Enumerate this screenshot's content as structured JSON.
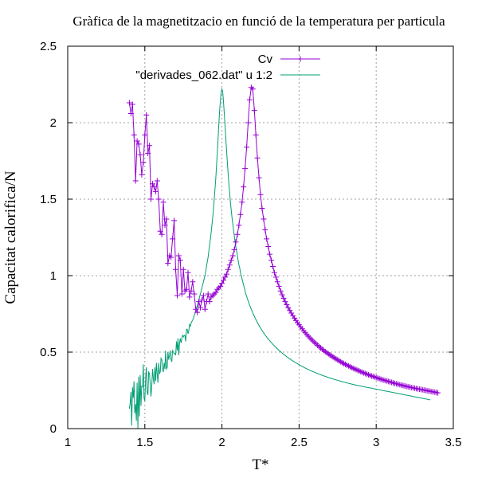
{
  "chart_data": {
    "type": "line",
    "title": "Gràfica de la magnetitzacio en funció de la temperatura per particula",
    "xlabel": "T*",
    "ylabel": "Capacitat calorifica/N",
    "xlim": [
      1,
      3.5
    ],
    "ylim": [
      0,
      2.5
    ],
    "xticks": [
      "1",
      "1.5",
      "2",
      "2.5",
      "3",
      "3.5"
    ],
    "yticks": [
      "0",
      "0.5",
      "1",
      "1.5",
      "2",
      "2.5"
    ],
    "grid": true,
    "legend_position": "top-right",
    "series": [
      {
        "name": "Cv",
        "color": "#9400d3",
        "marker": "plus",
        "x_start": 1.4,
        "x_step": 0.01,
        "values": [
          2.13,
          2.06,
          2.12,
          1.92,
          1.62,
          1.88,
          1.86,
          1.79,
          1.66,
          1.74,
          1.92,
          2.05,
          1.8,
          1.85,
          1.5,
          1.6,
          1.58,
          1.55,
          1.62,
          1.5,
          1.29,
          1.27,
          1.48,
          1.33,
          1.37,
          1.08,
          1.13,
          1.12,
          1.24,
          1.36,
          1.04,
          0.87,
          1.13,
          1.1,
          0.88,
          1.04,
          0.9,
          0.91,
          1.02,
          0.86,
          0.9,
          0.96,
          0.88,
          0.78,
          0.76,
          0.83,
          0.79,
          0.84,
          0.87,
          0.78,
          0.83,
          0.88,
          0.83,
          0.86,
          0.87,
          0.88,
          0.89,
          0.91,
          0.92,
          0.93,
          0.95,
          0.97,
          0.99,
          1.01,
          1.04,
          1.07,
          1.1,
          1.13,
          1.17,
          1.22,
          1.27,
          1.33,
          1.4,
          1.48,
          1.58,
          1.7,
          1.84,
          2.0,
          2.15,
          2.23,
          2.22,
          2.08,
          1.92,
          1.77,
          1.64,
          1.53,
          1.44,
          1.37,
          1.3,
          1.24,
          1.19,
          1.14,
          1.1,
          1.06,
          1.02,
          0.99,
          0.96,
          0.93,
          0.9,
          0.875,
          0.852,
          0.83,
          0.81,
          0.79,
          0.772,
          0.755,
          0.738,
          0.722,
          0.707,
          0.692,
          0.678,
          0.665,
          0.652,
          0.639,
          0.627,
          0.615,
          0.604,
          0.593,
          0.583,
          0.573,
          0.563,
          0.554,
          0.545,
          0.536,
          0.527,
          0.519,
          0.511,
          0.503,
          0.496,
          0.489,
          0.482,
          0.475,
          0.468,
          0.462,
          0.455,
          0.449,
          0.443,
          0.437,
          0.431,
          0.426,
          0.42,
          0.415,
          0.41,
          0.405,
          0.4,
          0.395,
          0.39,
          0.386,
          0.381,
          0.377,
          0.372,
          0.368,
          0.364,
          0.36,
          0.356,
          0.352,
          0.348,
          0.344,
          0.341,
          0.337,
          0.334,
          0.33,
          0.327,
          0.323,
          0.32,
          0.317,
          0.314,
          0.311,
          0.308,
          0.305,
          0.302,
          0.299,
          0.296,
          0.293,
          0.291,
          0.288,
          0.285,
          0.283,
          0.28,
          0.278,
          0.275,
          0.273,
          0.271,
          0.268,
          0.266,
          0.264,
          0.262,
          0.26,
          0.258,
          0.256,
          0.254,
          0.252,
          0.25,
          0.248,
          0.246,
          0.244,
          0.242,
          0.24,
          0.238,
          0.236,
          0.234
        ]
      },
      {
        "name": "\"derivades_062.dat\" u 1:2",
        "color": "#009e73",
        "marker": "none",
        "x_start": 1.4,
        "x_step": 0.005,
        "values": [
          0.13,
          0.17,
          0.24,
          0.02,
          0.27,
          0.2,
          0.31,
          0.1,
          0.16,
          0.05,
          0.3,
          0.0,
          0.34,
          0.08,
          0.35,
          0.15,
          0.28,
          0.27,
          0.42,
          0.2,
          0.18,
          0.33,
          0.4,
          0.24,
          0.22,
          0.37,
          0.36,
          0.29,
          0.21,
          0.28,
          0.39,
          0.33,
          0.29,
          0.4,
          0.31,
          0.43,
          0.36,
          0.3,
          0.43,
          0.36,
          0.37,
          0.46,
          0.45,
          0.39,
          0.37,
          0.43,
          0.39,
          0.51,
          0.39,
          0.4,
          0.5,
          0.45,
          0.48,
          0.51,
          0.45,
          0.44,
          0.51,
          0.5,
          0.49,
          0.49,
          0.48,
          0.57,
          0.51,
          0.59,
          0.48,
          0.56,
          0.59,
          0.56,
          0.59,
          0.61,
          0.6,
          0.61,
          0.61,
          0.57,
          0.65,
          0.65,
          0.62,
          0.64,
          0.68,
          0.67,
          0.69,
          0.7,
          0.71,
          0.72,
          0.74,
          0.75,
          0.77,
          0.79,
          0.8,
          0.82,
          0.84,
          0.86,
          0.88,
          0.9,
          0.92,
          0.94,
          0.96,
          0.98,
          1.0,
          1.03,
          1.06,
          1.09,
          1.12,
          1.16,
          1.2,
          1.24,
          1.28,
          1.33,
          1.38,
          1.44,
          1.5,
          1.57,
          1.64,
          1.72,
          1.81,
          1.9,
          1.99,
          2.08,
          2.15,
          2.2,
          2.22,
          2.2,
          2.14,
          2.06,
          1.98,
          1.9,
          1.82,
          1.74,
          1.67,
          1.6,
          1.54,
          1.48,
          1.43,
          1.38,
          1.34,
          1.3,
          1.26,
          1.22,
          1.19,
          1.16,
          1.13,
          1.1,
          1.07,
          1.05,
          1.02,
          1.0,
          0.98,
          0.96,
          0.94,
          0.92,
          0.9,
          0.88,
          0.865,
          0.85,
          0.835,
          0.82,
          0.806,
          0.793,
          0.78,
          0.768,
          0.756,
          0.745,
          0.734,
          0.723,
          0.713,
          0.703,
          0.693,
          0.684,
          0.675,
          0.666,
          0.658,
          0.65,
          0.642,
          0.634,
          0.627,
          0.619,
          0.612,
          0.605,
          0.599,
          0.592,
          0.586,
          0.58,
          0.574,
          0.568,
          0.562,
          0.557,
          0.551,
          0.546,
          0.541,
          0.536,
          0.531,
          0.526,
          0.521,
          0.516,
          0.512,
          0.507,
          0.503,
          0.499,
          0.494,
          0.49,
          0.486,
          0.482,
          0.478,
          0.474,
          0.47,
          0.467,
          0.463,
          0.459,
          0.456,
          0.452,
          0.449,
          0.445,
          0.442,
          0.439,
          0.436,
          0.433,
          0.43,
          0.427,
          0.424,
          0.421,
          0.418,
          0.415,
          0.412,
          0.409,
          0.407,
          0.404,
          0.401,
          0.399,
          0.396,
          0.394,
          0.391,
          0.389,
          0.386,
          0.384,
          0.382,
          0.379,
          0.377,
          0.375,
          0.373,
          0.371,
          0.368,
          0.366,
          0.364,
          0.362,
          0.36,
          0.358,
          0.356,
          0.354,
          0.352,
          0.35,
          0.349,
          0.347,
          0.345,
          0.343,
          0.341,
          0.34,
          0.338,
          0.336,
          0.334,
          0.333,
          0.331,
          0.329,
          0.328,
          0.326,
          0.325,
          0.323,
          0.322,
          0.32,
          0.319,
          0.317,
          0.316,
          0.314,
          0.313,
          0.311,
          0.31,
          0.308,
          0.307,
          0.306,
          0.304,
          0.303,
          0.302,
          0.3,
          0.299,
          0.298,
          0.296,
          0.295,
          0.294,
          0.293,
          0.291,
          0.29,
          0.289,
          0.288,
          0.287,
          0.285,
          0.284,
          0.283,
          0.282,
          0.281,
          0.28,
          0.279,
          0.278,
          0.277,
          0.276,
          0.275,
          0.274,
          0.273,
          0.272,
          0.271,
          0.27,
          0.269,
          0.268,
          0.267,
          0.266,
          0.265,
          0.264,
          0.263,
          0.262,
          0.261,
          0.26,
          0.259,
          0.258,
          0.257,
          0.256,
          0.255,
          0.254,
          0.253,
          0.252,
          0.251,
          0.25,
          0.249,
          0.248,
          0.247,
          0.246,
          0.245,
          0.244,
          0.243,
          0.242,
          0.241,
          0.24,
          0.239,
          0.238,
          0.237,
          0.236,
          0.235,
          0.234,
          0.233,
          0.232,
          0.231,
          0.23,
          0.229,
          0.228,
          0.227,
          0.226,
          0.225,
          0.224,
          0.223,
          0.222,
          0.221,
          0.22,
          0.219,
          0.218,
          0.217,
          0.216,
          0.215,
          0.214,
          0.213,
          0.212,
          0.211,
          0.21,
          0.209,
          0.208,
          0.207,
          0.206,
          0.205,
          0.204,
          0.203,
          0.202,
          0.201,
          0.2,
          0.199,
          0.198,
          0.197,
          0.196,
          0.195,
          0.194,
          0.193,
          0.192,
          0.191,
          0.19,
          0.189,
          0.188
        ]
      }
    ]
  }
}
